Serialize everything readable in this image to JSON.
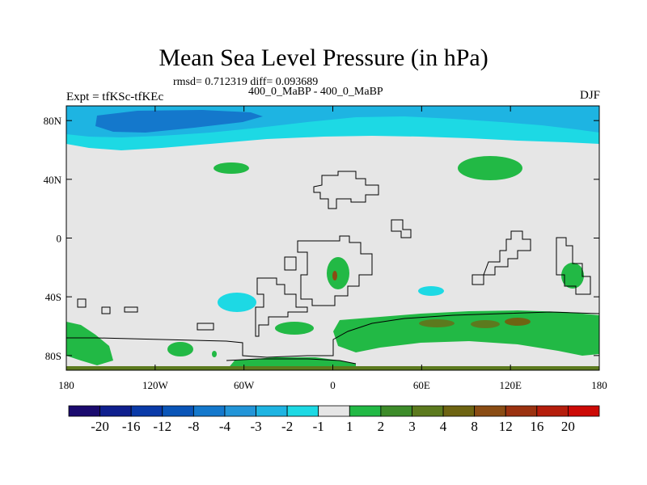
{
  "title": "Mean Sea Level Pressure (in hPa)",
  "stats": "rmsd= 0.712319 diff= 0.093689",
  "subtitle": "400_0_MaBP - 400_0_MaBP",
  "expt": "Expt = tfKSc-tfKEc",
  "season": "DJF",
  "axes": {
    "y_ticks": [
      {
        "label": "80N",
        "lat": 80
      },
      {
        "label": "40N",
        "lat": 40
      },
      {
        "label": "0",
        "lat": 0
      },
      {
        "label": "40S",
        "lat": -40
      },
      {
        "label": "80S",
        "lat": -80
      }
    ],
    "x_ticks": [
      {
        "label": "180",
        "lon": -180
      },
      {
        "label": "120W",
        "lon": -120
      },
      {
        "label": "60W",
        "lon": -60
      },
      {
        "label": "0",
        "lon": 0
      },
      {
        "label": "60E",
        "lon": 60
      },
      {
        "label": "120E",
        "lon": 120
      },
      {
        "label": "180",
        "lon": 180
      }
    ],
    "lat_range": [
      -90,
      90
    ],
    "lon_range": [
      -180,
      180
    ]
  },
  "colorbar": {
    "colors": [
      "#1a0a6e",
      "#0f1f8e",
      "#0a3aa8",
      "#0a55b8",
      "#1478cc",
      "#2295d8",
      "#1eb4e2",
      "#1dd9e4",
      "#e6e6e6",
      "#22b945",
      "#3d8c2a",
      "#5c7a1e",
      "#6e6412",
      "#8a4c14",
      "#9b3210",
      "#b51d0c",
      "#cc0a06"
    ],
    "labels": [
      "-20",
      "-16",
      "-12",
      "-8",
      "-4",
      "-3",
      "-2",
      "-1",
      "1",
      "2",
      "3",
      "4",
      "8",
      "12",
      "16",
      "20"
    ]
  },
  "palette": {
    "neutral": "#e6e6e6",
    "light_blue": "#1dd9e4",
    "mid_blue": "#1eb4e2",
    "dark_blue": "#1478cc",
    "green": "#22b945",
    "olive": "#5c7a1e",
    "brown": "#8a4c14"
  }
}
